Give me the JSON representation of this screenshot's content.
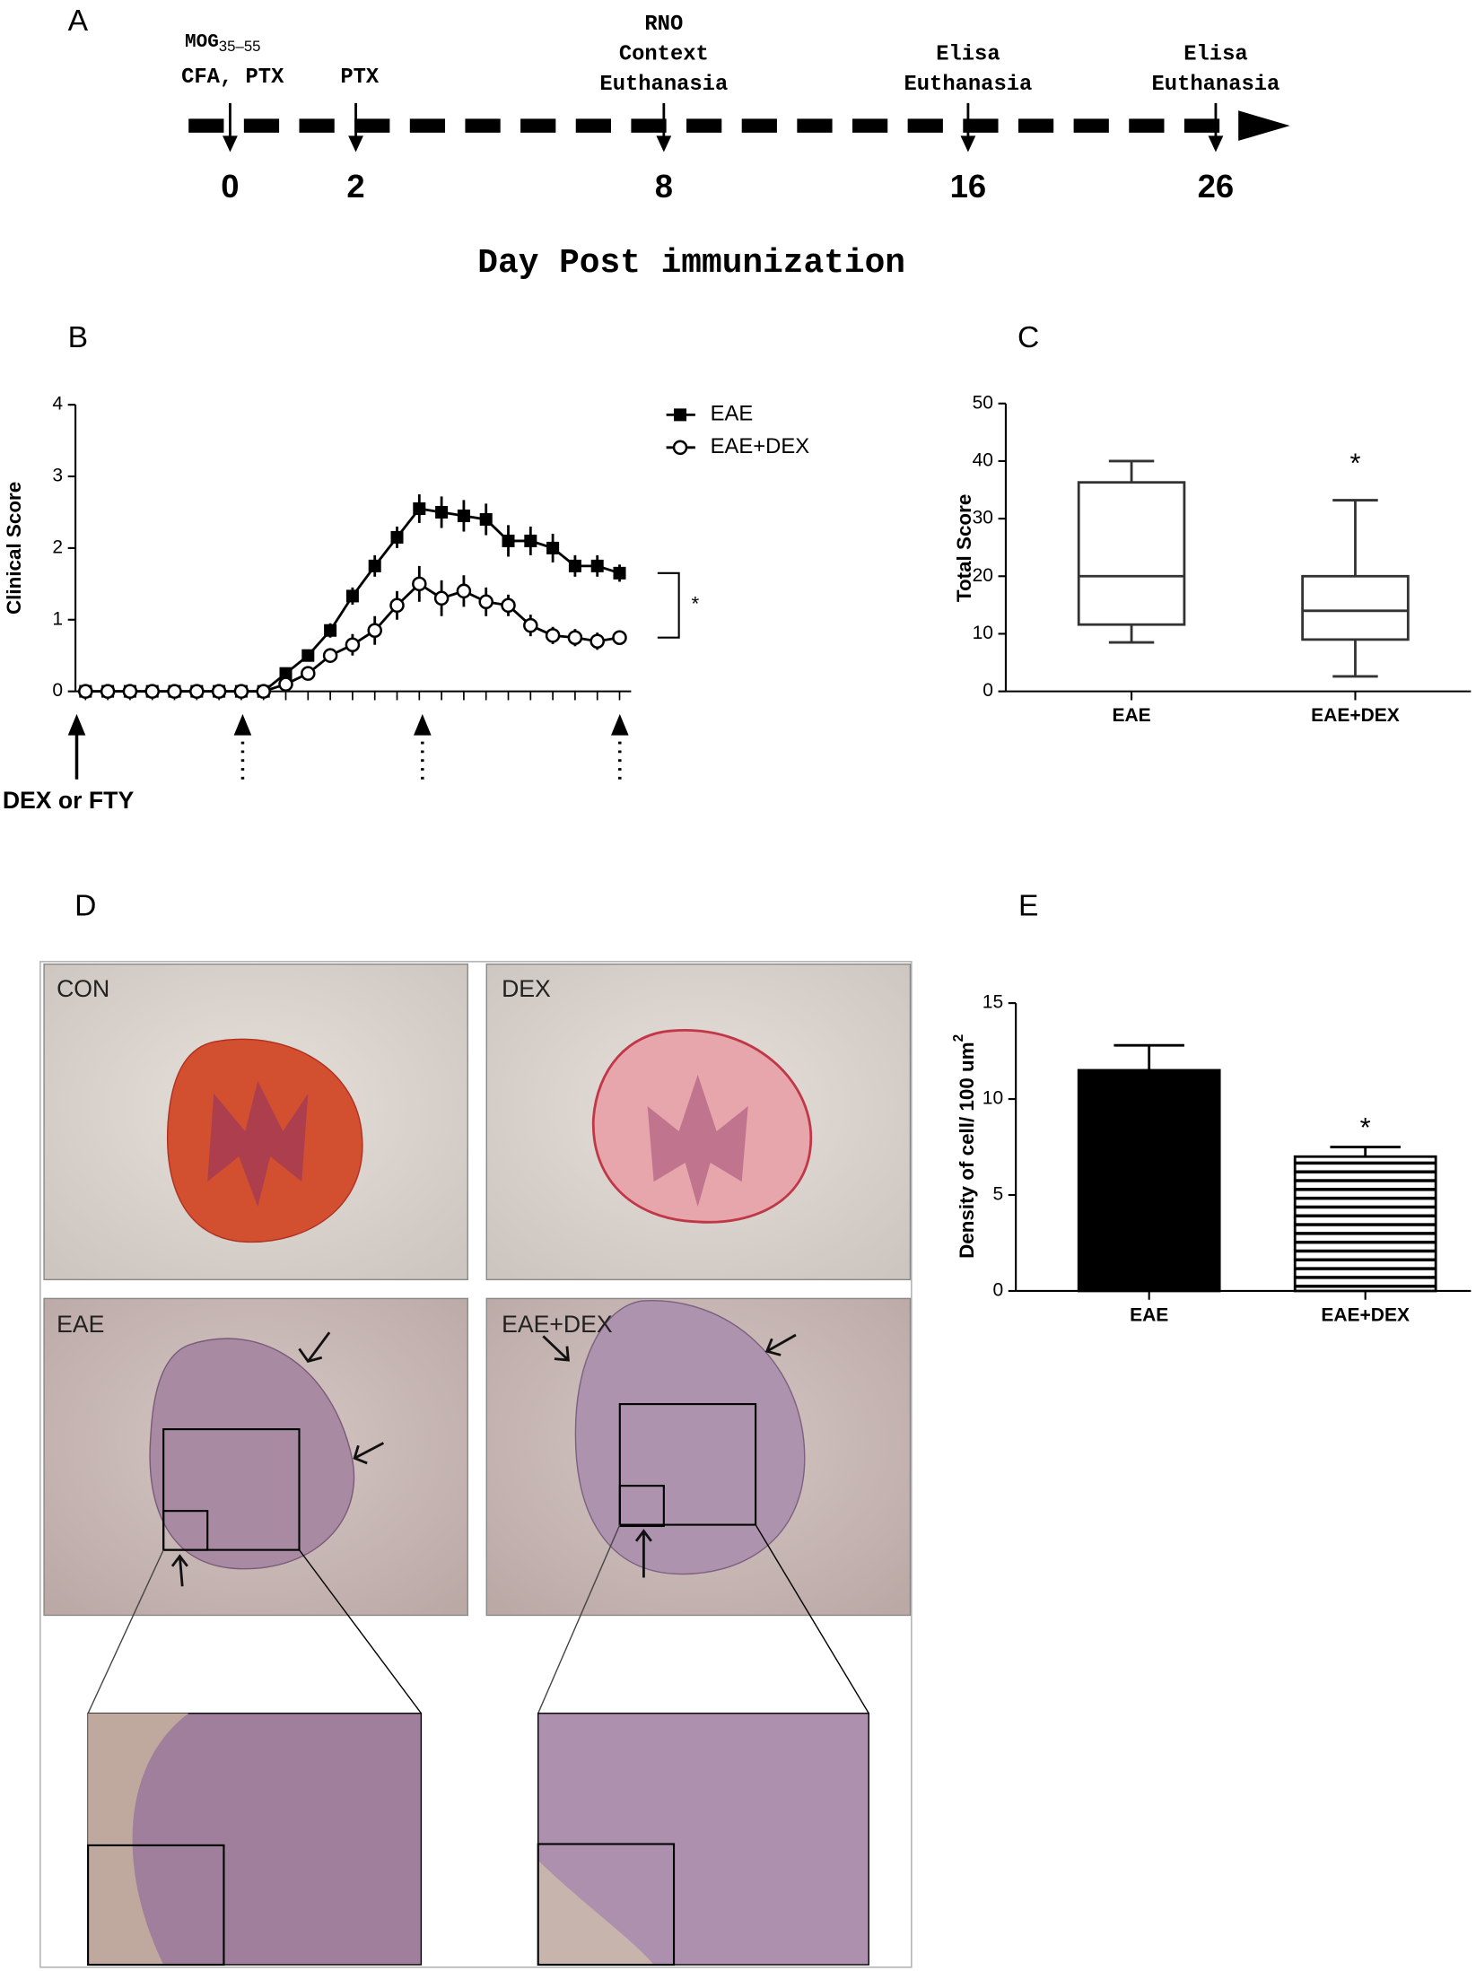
{
  "panel_labels": [
    "A",
    "B",
    "C",
    "D",
    "E"
  ],
  "timeline": {
    "mog": "MOG",
    "mog_sub": "35–55",
    "events": [
      {
        "day": 0,
        "lines": [
          "CFA, PTX"
        ]
      },
      {
        "day": 2,
        "lines": [
          "PTX"
        ]
      },
      {
        "day": 8,
        "lines": [
          "RNO",
          "Context",
          "Euthanasia"
        ]
      },
      {
        "day": 16,
        "lines": [
          "Elisa",
          "Euthanasia"
        ]
      },
      {
        "day": 26,
        "lines": [
          "Elisa",
          "Euthanasia"
        ]
      }
    ],
    "axis_title": "Day Post immunization"
  },
  "chart_data": [
    {
      "type": "line",
      "ylabel": "Clinical Score",
      "categories": [
        null,
        null,
        null,
        null,
        null,
        null,
        null,
        null,
        null,
        null,
        null,
        null,
        null,
        null,
        null,
        null,
        null,
        null,
        null,
        null,
        null,
        null,
        null,
        null,
        null
      ],
      "ylim": [
        0,
        4
      ],
      "yticks": [
        0,
        1,
        2,
        3,
        4
      ],
      "legend": "upper right",
      "annotation": "*",
      "treatment_label": "DEX or FTY",
      "series": [
        {
          "name": "EAE",
          "color": "#000000",
          "marker": "square",
          "values": [
            0,
            0,
            0,
            0,
            0,
            0,
            0,
            0,
            0,
            0.25,
            0.5,
            0.85,
            1.33,
            1.75,
            2.15,
            2.55,
            2.5,
            2.45,
            2.4,
            2.1,
            2.1,
            2.0,
            1.75,
            1.75,
            1.65
          ],
          "errors": [
            0,
            0,
            0,
            0,
            0,
            0,
            0,
            0,
            0,
            0.08,
            0.08,
            0.1,
            0.12,
            0.15,
            0.15,
            0.2,
            0.22,
            0.22,
            0.22,
            0.22,
            0.2,
            0.2,
            0.15,
            0.15,
            0.12
          ]
        },
        {
          "name": "EAE+DEX",
          "color": "#000000",
          "marker": "open-circle",
          "values": [
            0,
            0,
            0,
            0,
            0,
            0,
            0,
            0,
            0,
            0.1,
            0.25,
            0.5,
            0.65,
            0.85,
            1.2,
            1.5,
            1.3,
            1.4,
            1.25,
            1.2,
            0.92,
            0.78,
            0.75,
            0.7,
            0.75
          ],
          "errors": [
            0,
            0,
            0,
            0,
            0,
            0,
            0,
            0,
            0,
            0.05,
            0.08,
            0.1,
            0.15,
            0.2,
            0.2,
            0.25,
            0.25,
            0.22,
            0.2,
            0.15,
            0.15,
            0.12,
            0.12,
            0.12,
            0.1
          ]
        }
      ]
    },
    {
      "type": "box",
      "ylabel": "Total Score",
      "categories": [
        "EAE",
        "EAE+DEX"
      ],
      "ylim": [
        0,
        50
      ],
      "yticks": [
        0,
        10,
        20,
        30,
        40,
        50
      ],
      "boxes": [
        {
          "min": 8.5,
          "q1": 11.6,
          "median": 20,
          "q3": 36.3,
          "max": 40
        },
        {
          "min": 2.6,
          "q1": 9,
          "median": 14,
          "q3": 20,
          "max": 33.2
        }
      ],
      "color": "#333333",
      "annotation": "*"
    },
    {
      "type": "bar",
      "ylabel": "Density of cell/ 100 um",
      "ylabel_sup": "2",
      "categories": [
        "EAE",
        "EAE+DEX"
      ],
      "values": [
        11.5,
        7.0
      ],
      "errors": [
        1.3,
        0.5
      ],
      "colors": [
        "#000000",
        "#ffffff"
      ],
      "patterns": [
        "solid",
        "horizontal-stripes"
      ],
      "ylim": [
        0,
        15
      ],
      "yticks": [
        0,
        5,
        10,
        15
      ],
      "annotation": "*"
    }
  ],
  "histology": {
    "panels": [
      "CON",
      "DEX",
      "EAE",
      "EAE+DEX"
    ]
  }
}
